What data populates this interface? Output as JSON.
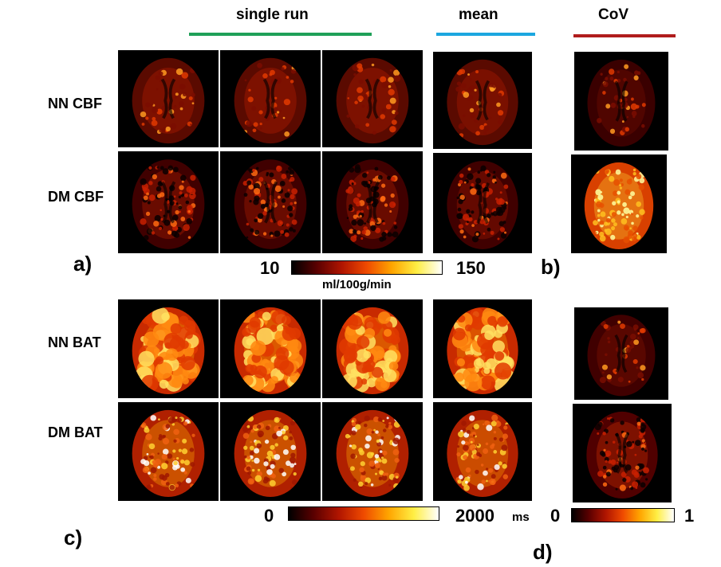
{
  "headers": {
    "single_run": "single run",
    "mean": "mean",
    "cov": "CoV"
  },
  "row_labels": {
    "nn_cbf": "NN CBF",
    "dm_cbf": "DM CBF",
    "nn_bat": "NN BAT",
    "dm_bat": "DM BAT"
  },
  "panel_labels": {
    "a": "a)",
    "b": "b)",
    "c": "c)",
    "d": "d)"
  },
  "colorbars": {
    "cbf": {
      "min": "10",
      "max": "150",
      "unit": "ml/100g/min"
    },
    "bat": {
      "min": "0",
      "max": "2000",
      "unit": "ms"
    },
    "cov": {
      "min": "0",
      "max": "1"
    }
  },
  "colors": {
    "single_run_line": "#1fa058",
    "mean_line": "#1ca7e0",
    "cov_line": "#b01c1c",
    "colormap": [
      "#000000",
      "#5a0000",
      "#b01500",
      "#ef4a00",
      "#ffa500",
      "#ffee44",
      "#ffffff"
    ]
  }
}
